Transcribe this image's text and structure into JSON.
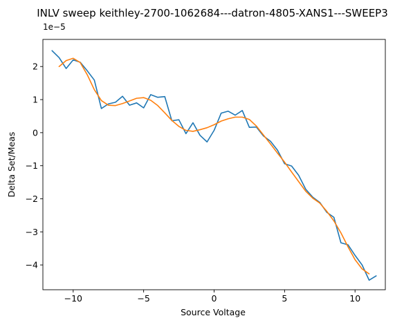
{
  "chart_data": {
    "type": "line",
    "title": "INLV sweep keithley-2700-1062684---datron-4805-XANS1---SWEEP3",
    "xlabel": "Source Voltage",
    "ylabel": "Delta Set/Meas",
    "y_offset_label": "1e−5",
    "xlim": [
      -12.15,
      12.15
    ],
    "ylim": [
      -4.75,
      2.82
    ],
    "x_ticks": [
      -10,
      -5,
      0,
      5,
      10
    ],
    "x_tick_labels": [
      "−10",
      "−5",
      "0",
      "5",
      "10"
    ],
    "y_ticks": [
      -4,
      -3,
      -2,
      -1,
      0,
      1,
      2
    ],
    "y_tick_labels": [
      "−4",
      "−3",
      "−2",
      "−1",
      "0",
      "1",
      "2"
    ],
    "grid": false,
    "series": [
      {
        "color": "#1f77b4",
        "x": [
          -11.5,
          -11.0,
          -10.5,
          -10.0,
          -9.5,
          -9.0,
          -8.5,
          -8.0,
          -7.5,
          -7.0,
          -6.5,
          -6.0,
          -5.5,
          -5.0,
          -4.5,
          -4.0,
          -3.5,
          -3.0,
          -2.5,
          -2.0,
          -1.5,
          -1.0,
          -0.5,
          0.0,
          0.5,
          1.0,
          1.5,
          2.0,
          2.5,
          3.0,
          3.5,
          4.0,
          4.5,
          5.0,
          5.5,
          6.0,
          6.5,
          7.0,
          7.5,
          8.0,
          8.5,
          9.0,
          9.5,
          10.0,
          10.5,
          11.0,
          11.5
        ],
        "y": [
          2.48,
          2.27,
          1.94,
          2.2,
          2.13,
          1.87,
          1.59,
          0.73,
          0.87,
          0.92,
          1.1,
          0.83,
          0.9,
          0.75,
          1.15,
          1.07,
          1.09,
          0.36,
          0.39,
          -0.03,
          0.3,
          -0.08,
          -0.28,
          0.07,
          0.59,
          0.65,
          0.53,
          0.67,
          0.16,
          0.17,
          -0.1,
          -0.26,
          -0.53,
          -0.94,
          -1.01,
          -1.29,
          -1.71,
          -1.95,
          -2.11,
          -2.41,
          -2.56,
          -3.33,
          -3.39,
          -3.71,
          -4.0,
          -4.46,
          -4.33
        ]
      },
      {
        "color": "#ff7f0e",
        "x": [
          -11.0,
          -10.5,
          -10.0,
          -9.5,
          -9.0,
          -8.5,
          -8.0,
          -7.5,
          -7.0,
          -6.5,
          -6.0,
          -5.5,
          -5.0,
          -4.5,
          -4.0,
          -3.5,
          -3.0,
          -2.5,
          -2.0,
          -1.5,
          -1.0,
          -0.5,
          0.0,
          0.5,
          1.0,
          1.5,
          2.0,
          2.5,
          3.0,
          3.5,
          4.0,
          4.5,
          5.0,
          5.5,
          6.0,
          6.5,
          7.0,
          7.5,
          8.0,
          8.5,
          9.0,
          9.5,
          10.0,
          10.5,
          11.0
        ],
        "y": [
          2.0,
          2.18,
          2.25,
          2.12,
          1.75,
          1.3,
          0.97,
          0.83,
          0.82,
          0.88,
          0.96,
          1.04,
          1.06,
          0.98,
          0.82,
          0.6,
          0.37,
          0.19,
          0.07,
          0.04,
          0.09,
          0.15,
          0.24,
          0.35,
          0.42,
          0.47,
          0.47,
          0.4,
          0.2,
          -0.07,
          -0.34,
          -0.62,
          -0.89,
          -1.19,
          -1.48,
          -1.77,
          -1.98,
          -2.13,
          -2.38,
          -2.67,
          -3.03,
          -3.45,
          -3.84,
          -4.12,
          -4.27
        ]
      }
    ]
  }
}
